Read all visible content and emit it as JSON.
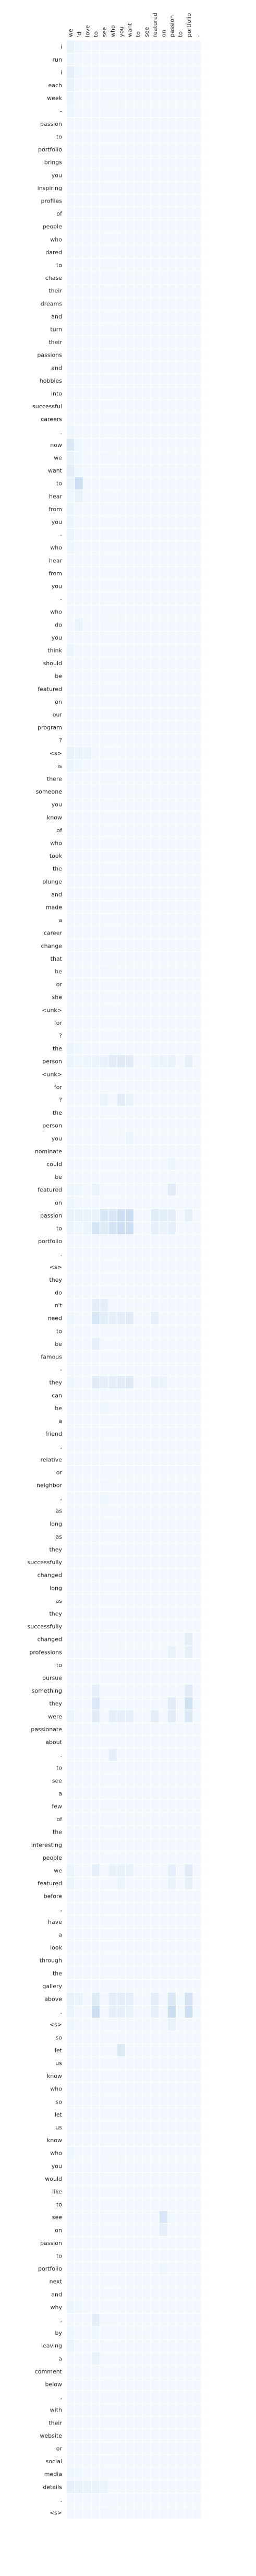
{
  "chart_data": {
    "type": "heatmap",
    "title": "",
    "xlabel": "",
    "ylabel": "",
    "x": [
      "we",
      "'d",
      "love",
      "to",
      "see",
      "who",
      "you",
      "want",
      "to",
      "see",
      "featured",
      "on",
      "passion",
      "to",
      "portfolio",
      "."
    ],
    "y": [
      "i",
      "run",
      "i",
      "each",
      "week",
      "-",
      "passion",
      "to",
      "portfolio",
      "brings",
      "you",
      "inspiring",
      "profiles",
      "of",
      "people",
      "who",
      "dared",
      "to",
      "chase",
      "their",
      "dreams",
      "and",
      "turn",
      "their",
      "passions",
      "and",
      "hobbies",
      "into",
      "successful",
      "careers",
      ".",
      "now",
      "we",
      "want",
      "to",
      "hear",
      "from",
      "you",
      "-",
      "who",
      "hear",
      "from",
      "you",
      "-",
      "who",
      "do",
      "you",
      "think",
      "should",
      "be",
      "featured",
      "on",
      "our",
      "program",
      "?",
      "<s>",
      "is",
      "there",
      "someone",
      "you",
      "know",
      "of",
      "who",
      "took",
      "the",
      "plunge",
      "and",
      "made",
      "a",
      "career",
      "change",
      "that",
      "he",
      "or",
      "she",
      "<unk>",
      "for",
      "?",
      "the",
      "person",
      "<unk>",
      "for",
      "?",
      "the",
      "person",
      "you",
      "nominate",
      "could",
      "be",
      "featured",
      "on",
      "passion",
      "to",
      "portfolio",
      ".",
      "<s>",
      "they",
      "do",
      "n't",
      "need",
      "to",
      "be",
      "famous",
      "-",
      "they",
      "can",
      "be",
      "a",
      "friend",
      ",",
      "relative",
      "or",
      "neighbor",
      ",",
      "as",
      "long",
      "as",
      "they",
      "successfully",
      "changed",
      "long",
      "as",
      "they",
      "successfully",
      "changed",
      "professions",
      "to",
      "pursue",
      "something",
      "they",
      "were",
      "passionate",
      "about",
      ".",
      "to",
      "see",
      "a",
      "few",
      "of",
      "the",
      "interesting",
      "people",
      "we",
      "featured",
      "before",
      ",",
      "have",
      "a",
      "look",
      "through",
      "the",
      "gallery",
      "above",
      ".",
      "<s>",
      "so",
      "let",
      "us",
      "know",
      "who",
      "so",
      "let",
      "us",
      "know",
      "who",
      "you",
      "would",
      "like",
      "to",
      "see",
      "on",
      "passion",
      "to",
      "portfolio",
      "next",
      "and",
      "why",
      ",",
      "by",
      "leaving",
      "a",
      "comment",
      "below",
      ",",
      "with",
      "their",
      "website",
      "or",
      "social",
      "media",
      "details",
      ".",
      "<s>"
    ],
    "colormap": "Blues",
    "range": [
      0,
      1
    ],
    "base_value": 0.03,
    "highlights": [
      {
        "row": "i",
        "row_index": 0,
        "values": {
          "we": 0.09,
          "'d": 0.05
        }
      },
      {
        "row": "run",
        "row_index": 1,
        "values": {
          "we": 0.06
        }
      },
      {
        "row": "i",
        "row_index": 2,
        "values": {
          "we": 0.12,
          "'d": 0.05
        }
      },
      {
        "row": "each",
        "row_index": 3,
        "values": {
          "we": 0.1
        }
      },
      {
        "row": "week",
        "row_index": 4,
        "values": {
          "we": 0.07
        }
      },
      {
        "row": "-",
        "row_index": 5,
        "values": {
          "we": 0.06
        }
      },
      {
        "row": ".",
        "row_index": 30,
        "values": {
          "we": 0.06
        }
      },
      {
        "row": "now",
        "row_index": 31,
        "values": {
          "we": 0.2,
          "'d": 0.05
        }
      },
      {
        "row": "we",
        "row_index": 32,
        "values": {
          "we": 0.09,
          "'d": 0.06
        }
      },
      {
        "row": "want",
        "row_index": 33,
        "values": {
          "we": 0.14,
          "'d": 0.06
        }
      },
      {
        "row": "to",
        "row_index": 34,
        "values": {
          "we": 0.09,
          "'d": 0.3
        }
      },
      {
        "row": "hear",
        "row_index": 35,
        "values": {
          "we": 0.06,
          "'d": 0.1
        }
      },
      {
        "row": "from",
        "row_index": 36,
        "values": {
          "we": 0.07
        }
      },
      {
        "row": "you",
        "row_index": 37,
        "values": {
          "we": 0.07
        }
      },
      {
        "row": "-",
        "row_index": 38,
        "values": {
          "we": 0.08
        }
      },
      {
        "row": "who",
        "row_index": 39,
        "values": {
          "we": 0.06
        }
      },
      {
        "row": "do",
        "row_index": 45,
        "values": {
          "'d": 0.08
        }
      },
      {
        "row": "think",
        "row_index": 47,
        "values": {
          "we": 0.07
        }
      },
      {
        "row": "<s>",
        "row_index": 55,
        "values": {
          "we": 0.1,
          "'d": 0.08,
          "love": 0.08
        }
      },
      {
        "row": "is",
        "row_index": 56,
        "values": {
          "we": 0.07,
          "'d": 0.06
        }
      },
      {
        "row": "?",
        "row_index": 78,
        "values": {
          "we": 0.07,
          "'d": 0.06
        }
      },
      {
        "row": "the",
        "row_index": 79,
        "values": {
          "we": 0.08,
          "'d": 0.06,
          "love": 0.07,
          "to": 0.08,
          "see": 0.1,
          "who": 0.16,
          "you": 0.18,
          "want": 0.16,
          "featured": 0.08,
          "on": 0.08,
          "passion": 0.1,
          "portfolio": 0.12
        }
      },
      {
        "row": "nominate",
        "row_index": 82,
        "values": {
          "you": 0.16,
          "want": 0.1,
          "see": 0.08
        }
      },
      {
        "row": "featured",
        "row_index": 85,
        "values": {
          "want": 0.07
        }
      },
      {
        "row": "passion",
        "row_index": 87,
        "values": {
          "passion": 0.07
        }
      },
      {
        "row": "portfolio",
        "row_index": 89,
        "values": {
          "we": 0.06,
          "'d": 0.06,
          "passion": 0.16,
          "to": 0.08
        }
      },
      {
        "row": ".",
        "row_index": 90,
        "values": {
          "we": 0.06
        }
      },
      {
        "row": "<s>",
        "row_index": 91,
        "values": {
          "we": 0.1,
          "'d": 0.1,
          "love": 0.1,
          "to": 0.1,
          "see": 0.22,
          "who": 0.22,
          "you": 0.3,
          "want": 0.32,
          "featured": 0.16,
          "on": 0.14,
          "passion": 0.14,
          "portfolio": 0.12
        }
      },
      {
        "row": "they",
        "row_index": 92,
        "values": {
          "we": 0.08,
          "'d": 0.06,
          "love": 0.08,
          "see": 0.18,
          "who": 0.26,
          "you": 0.32,
          "want": 0.3,
          "to": 0.24,
          "featured": 0.12,
          "on": 0.1,
          "passion": 0.12
        }
      },
      {
        "row": "famous",
        "row_index": 98,
        "values": {
          "to": 0.14,
          "see": 0.14
        }
      },
      {
        "row": "-",
        "row_index": 99,
        "values": {
          "we": 0.06,
          "see": 0.14,
          "who": 0.12,
          "you": 0.14,
          "want": 0.16,
          "to": 0.22,
          "featured": 0.12
        }
      },
      {
        "row": "can",
        "row_index": 101,
        "values": {
          "to": 0.12
        }
      },
      {
        "row": "friend",
        "row_index": 104,
        "values": {
          "we": 0.06,
          "see": 0.12,
          "who": 0.14,
          "you": 0.16,
          "want": 0.18,
          "to": 0.16,
          "featured": 0.1,
          "on": 0.08
        }
      },
      {
        "row": "relative",
        "row_index": 106,
        "values": {
          "see": 0.06
        }
      },
      {
        "row": "successfully",
        "row_index": 113,
        "values": {
          "see": 0.06
        }
      },
      {
        "row": "pursue",
        "row_index": 124,
        "values": {
          "portfolio": 0.14
        }
      },
      {
        "row": "something",
        "row_index": 125,
        "values": {
          "passion": 0.1,
          "portfolio": 0.12
        }
      },
      {
        "row": "passionate",
        "row_index": 128,
        "values": {
          "portfolio": 0.16,
          "to": 0.12
        }
      },
      {
        "row": "about",
        "row_index": 129,
        "values": {
          "passion": 0.16,
          "to": 0.2,
          "portfolio": 0.28
        }
      },
      {
        "row": ".",
        "row_index": 130,
        "values": {
          "we": 0.08,
          "who": 0.12,
          "you": 0.12,
          "want": 0.12,
          "to": 0.16,
          "featured": 0.14,
          "passion": 0.16,
          "portfolio": 0.2
        }
      },
      {
        "row": "a",
        "row_index": 133,
        "values": {
          "who": 0.12
        }
      },
      {
        "row": "before",
        "row_index": 142,
        "values": {
          "we": 0.08,
          "who": 0.1,
          "you": 0.1,
          "want": 0.1,
          "passion": 0.12,
          "to": 0.12,
          "portfolio": 0.16
        }
      },
      {
        "row": ",",
        "row_index": 143,
        "values": {
          "we": 0.08,
          "you": 0.08,
          "passion": 0.1,
          "portfolio": 0.12
        }
      },
      {
        "row": "<s>",
        "row_index": 152,
        "values": {
          "we": 0.1,
          "'d": 0.08,
          "who": 0.14,
          "you": 0.14,
          "want": 0.12,
          "to": 0.18,
          "featured": 0.14,
          "passion": 0.2,
          "portfolio": 0.26
        }
      },
      {
        "row": "so",
        "row_index": 153,
        "values": {
          "we": 0.08,
          "who": 0.12,
          "you": 0.12,
          "want": 0.1,
          "featured": 0.12,
          "passion": 0.32,
          "to": 0.3,
          "portfolio": 0.3
        }
      },
      {
        "row": "let",
        "row_index": 154,
        "values": {
          "we": 0.06,
          "passion": 0.1
        }
      },
      {
        "row": "know",
        "row_index": 156,
        "values": {
          "you": 0.2
        }
      },
      {
        "row": "would",
        "row_index": 164,
        "values": {
          "we": 0.06
        }
      },
      {
        "row": "passion",
        "row_index": 169,
        "values": {
          "on": 0.22
        }
      },
      {
        "row": "to",
        "row_index": 170,
        "values": {
          "on": 0.12
        }
      },
      {
        "row": "and",
        "row_index": 173,
        "values": {
          "on": 0.06
        }
      },
      {
        "row": "by",
        "row_index": 176,
        "values": {
          "we": 0.08,
          "'d": 0.06
        }
      },
      {
        "row": "leaving",
        "row_index": 177,
        "values": {
          "to": 0.14
        }
      },
      {
        "row": "a",
        "row_index": 178,
        "values": {
          "we": 0.06,
          "to": 0.06
        }
      },
      {
        "row": "comment",
        "row_index": 179,
        "values": {
          "we": 0.08
        }
      },
      {
        "row": "below",
        "row_index": 180,
        "values": {
          "to": 0.1
        }
      },
      {
        "row": ".",
        "row_index": 189,
        "values": {
          "we": 0.06,
          "'d": 0.06
        }
      },
      {
        "row": "<s>",
        "row_index": 190,
        "values": {
          "we": 0.12,
          "'d": 0.1,
          "love": 0.1,
          "to": 0.1,
          "see": 0.08
        }
      }
    ]
  }
}
